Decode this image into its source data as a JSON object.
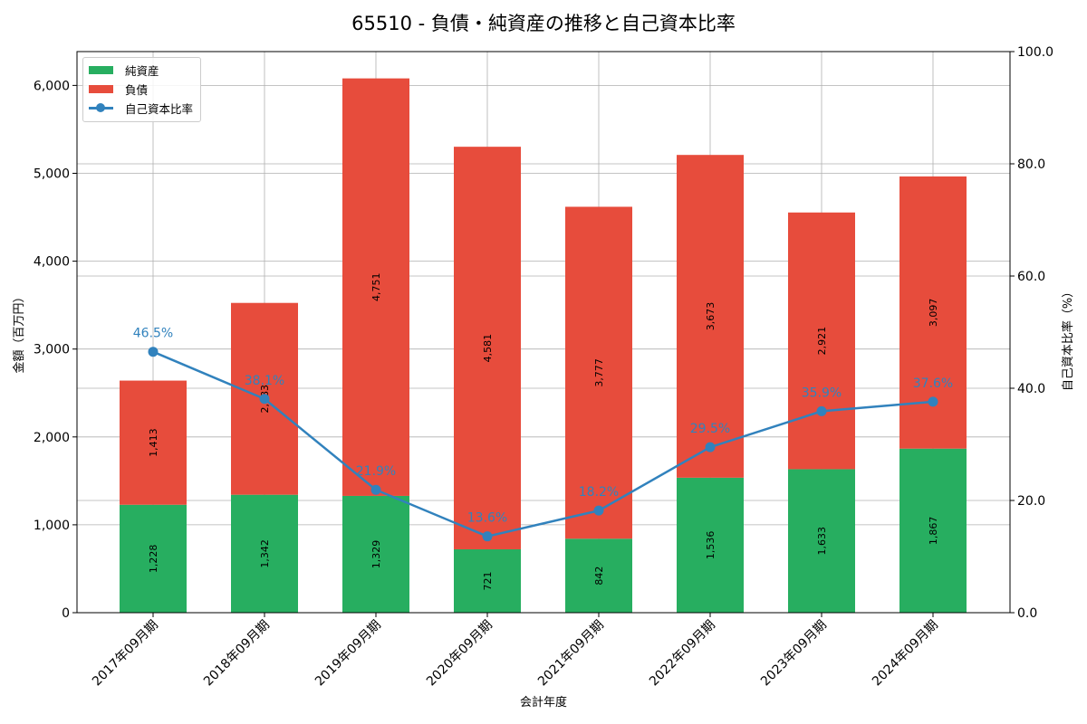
{
  "title": "65510 - 負債・純資産の推移と自己資本比率",
  "legend": {
    "net_assets": "純資産",
    "liabilities": "負債",
    "equity_ratio": "自己資本比率"
  },
  "colors": {
    "net_assets": "#27ae60",
    "liabilities": "#e74c3c",
    "equity_ratio": "#3182bd",
    "grid": "#b0b0b0"
  },
  "axes": {
    "x_title": "会計年度",
    "y_left_title": "金額（百万円）",
    "y_right_title": "自己資本比率（%）",
    "y_left_ticks": [
      "0",
      "1,000",
      "2,000",
      "3,000",
      "4,000",
      "5,000",
      "6,000"
    ],
    "y_right_ticks": [
      "0.0",
      "20.0",
      "40.0",
      "60.0",
      "80.0",
      "100.0"
    ]
  },
  "chart_data": {
    "type": "bar",
    "stacked": true,
    "title": "65510 - 負債・純資産の推移と自己資本比率",
    "xlabel": "会計年度",
    "ylabel": "金額（百万円）",
    "y2label": "自己資本比率（%）",
    "ylim": [
      0,
      6385
    ],
    "y2lim": [
      0,
      100
    ],
    "grid": true,
    "legend_position": "upper left",
    "categories": [
      "2017年09月期",
      "2018年09月期",
      "2019年09月期",
      "2020年09月期",
      "2021年09月期",
      "2022年09月期",
      "2023年09月期",
      "2024年09月期"
    ],
    "series": [
      {
        "name": "純資産",
        "type": "bar",
        "axis": "left",
        "values": [
          1228,
          1342,
          1329,
          721,
          842,
          1536,
          1633,
          1867
        ],
        "labels": [
          "1,228",
          "1,342",
          "1,329",
          "721",
          "842",
          "1,536",
          "1,633",
          "1,867"
        ]
      },
      {
        "name": "負債",
        "type": "bar",
        "axis": "left",
        "values": [
          1413,
          2183,
          4751,
          4581,
          3777,
          3673,
          2921,
          3097
        ],
        "labels": [
          "1,413",
          "2,183",
          "4,751",
          "4,581",
          "3,777",
          "3,673",
          "2,921",
          "3,097"
        ]
      },
      {
        "name": "自己資本比率",
        "type": "line",
        "axis": "right",
        "values": [
          46.5,
          38.1,
          21.9,
          13.6,
          18.2,
          29.5,
          35.9,
          37.6
        ],
        "labels": [
          "46.5%",
          "38.1%",
          "21.9%",
          "13.6%",
          "18.2%",
          "29.5%",
          "35.9%",
          "37.6%"
        ]
      }
    ]
  }
}
